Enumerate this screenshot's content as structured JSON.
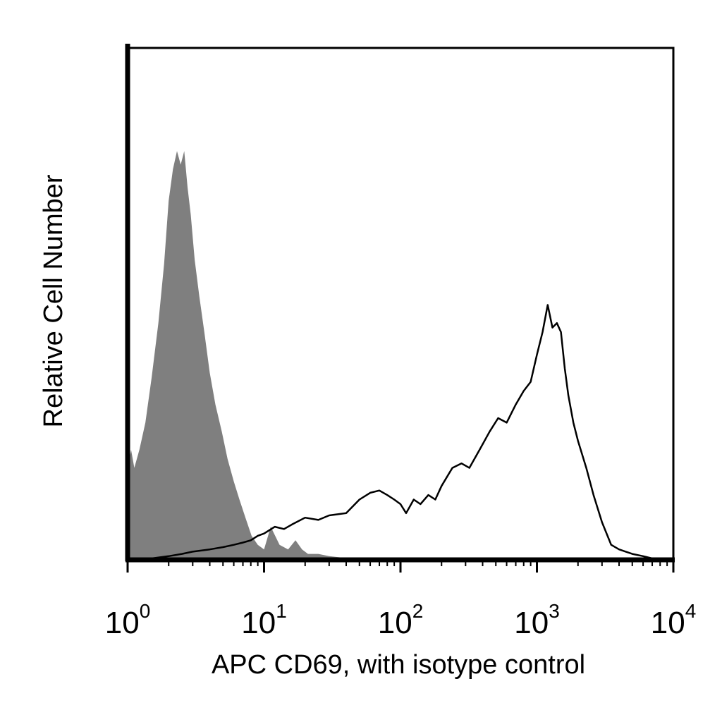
{
  "chart_data": {
    "type": "area",
    "xlabel": "APC CD69, with isotype control",
    "ylabel": "Relative Cell Number",
    "x_scale": "log",
    "xlim": [
      1,
      10000
    ],
    "ylim": [
      0,
      1
    ],
    "grid": false,
    "x_ticks": [
      {
        "base": "10",
        "exp": "0"
      },
      {
        "base": "10",
        "exp": "1"
      },
      {
        "base": "10",
        "exp": "2"
      },
      {
        "base": "10",
        "exp": "3"
      },
      {
        "base": "10",
        "exp": "4"
      }
    ],
    "series": [
      {
        "style": "filled",
        "color": "#7f7f7f",
        "x": [
          1.0,
          1.06,
          1.12,
          1.22,
          1.35,
          1.5,
          1.68,
          1.85,
          2.0,
          2.15,
          2.3,
          2.45,
          2.6,
          2.75,
          2.9,
          3.1,
          3.35,
          3.65,
          4.0,
          4.4,
          4.9,
          5.4,
          6.0,
          6.6,
          7.3,
          8.1,
          9.0,
          10.0,
          11.2,
          13.0,
          15.0,
          17.0,
          19.0,
          21.0,
          25.0,
          30.0,
          37.0,
          45.0
        ],
        "y": [
          0.2,
          0.24,
          0.2,
          0.24,
          0.3,
          0.4,
          0.52,
          0.65,
          0.79,
          0.86,
          0.9,
          0.87,
          0.9,
          0.82,
          0.76,
          0.66,
          0.58,
          0.5,
          0.41,
          0.34,
          0.28,
          0.22,
          0.17,
          0.13,
          0.09,
          0.05,
          0.03,
          0.02,
          0.07,
          0.03,
          0.02,
          0.04,
          0.02,
          0.01,
          0.01,
          0.005,
          0.002,
          0.0
        ]
      },
      {
        "style": "line",
        "color": "#000000",
        "x": [
          1.0,
          1.5,
          2.0,
          2.5,
          3.0,
          4.0,
          5.0,
          6.0,
          7.0,
          8.0,
          9.0,
          10.0,
          12.0,
          14.0,
          16.0,
          20.0,
          25.0,
          30.0,
          40.0,
          50.0,
          60.0,
          70.0,
          80.0,
          90.0,
          100.0,
          110.0,
          125.0,
          140.0,
          160.0,
          180.0,
          200.0,
          240.0,
          280.0,
          320.0,
          380.0,
          450.0,
          520.0,
          600.0,
          700.0,
          800.0,
          900.0,
          1000.0,
          1100.0,
          1200.0,
          1300.0,
          1400.0,
          1500.0,
          1600.0,
          1700.0,
          1850.0,
          2000.0,
          2300.0,
          2600.0,
          3000.0,
          3500.0,
          4000.0,
          5000.0,
          6000.0,
          7000.0,
          10000.0
        ],
        "y": [
          0.0,
          0.0,
          0.005,
          0.01,
          0.015,
          0.02,
          0.025,
          0.03,
          0.035,
          0.04,
          0.05,
          0.055,
          0.07,
          0.065,
          0.075,
          0.09,
          0.085,
          0.095,
          0.1,
          0.13,
          0.145,
          0.15,
          0.14,
          0.13,
          0.12,
          0.1,
          0.13,
          0.12,
          0.14,
          0.13,
          0.16,
          0.2,
          0.21,
          0.2,
          0.24,
          0.28,
          0.31,
          0.3,
          0.34,
          0.37,
          0.39,
          0.45,
          0.5,
          0.56,
          0.51,
          0.52,
          0.5,
          0.42,
          0.36,
          0.3,
          0.26,
          0.2,
          0.14,
          0.08,
          0.03,
          0.02,
          0.01,
          0.005,
          0.0,
          0.0
        ]
      }
    ]
  }
}
